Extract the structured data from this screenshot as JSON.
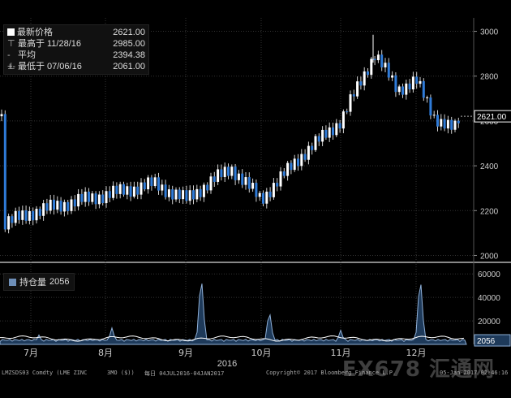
{
  "legend": {
    "rows": [
      {
        "symbol": "sq",
        "label": "最新价格",
        "date": "",
        "value": "2621.00"
      },
      {
        "symbol": "⊤",
        "label": "最高于",
        "date": "11/28/16",
        "value": "2985.00"
      },
      {
        "symbol": "-+-",
        "label": "平均",
        "date": "",
        "value": "2394.38"
      },
      {
        "symbol": "⊥",
        "label": "最低于",
        "date": "07/06/16",
        "value": "2061.00"
      }
    ]
  },
  "volume_legend": {
    "label": "持仓量",
    "value": "2056"
  },
  "footer": {
    "ticker": "LMZSDS03 Comdty (LME ZINC",
    "period": "3MO ($))",
    "range": "每日 04JUL2016-04JAN2017",
    "copyright": "Copyright© 2017 Bloomberg Finance L.P.",
    "timestamp": "05-Jan-2017 02:46:16"
  },
  "watermark": "EX678 汇通网",
  "colors": {
    "up": "#ffffff",
    "down": "#2f7bd8",
    "volume_fill": "#1e3a5a",
    "volume_line": "#8fb0d8",
    "oi_line": "#ffffff",
    "grid": "#333333"
  },
  "chart_data": [
    {
      "type": "candlestick",
      "title": "",
      "x_labels": [
        "7月",
        "8月",
        "9月",
        "10月",
        "11月",
        "12月"
      ],
      "x_sub_label": "2016",
      "ylim": [
        1980,
        3060
      ],
      "yticks": [
        "2000",
        "2200",
        "2400",
        "2600",
        "2800",
        "3000"
      ],
      "last_price": "2621.00",
      "grid": true,
      "y_axis_side": "right",
      "series": [
        {
          "name": "LME ZINC 3MO",
          "monthly_path": [
            {
              "month": "7月",
              "close": 2200
            },
            {
              "month": "8月",
              "close": 2290
            },
            {
              "month": "9月",
              "close": 2300
            },
            {
              "month": "10月",
              "close": 2400
            },
            {
              "month": "11月",
              "close": 2650
            },
            {
              "month": "12月",
              "close": 2621
            }
          ]
        }
      ],
      "high": {
        "value": 2985,
        "date": "11/28/16"
      },
      "low": {
        "value": 2061,
        "date": "07/06/16"
      },
      "average": 2394.38
    },
    {
      "type": "area",
      "title": "",
      "ylim": [
        0,
        65000
      ],
      "yticks": [
        "20000",
        "40000",
        "60000"
      ],
      "last_value": "2056",
      "series": [
        {
          "name": "持仓量",
          "spikes": [
            {
              "month": "7月",
              "value": 8000
            },
            {
              "month": "8月",
              "value": 14000
            },
            {
              "month": "9月",
              "value": 62000
            },
            {
              "month": "10月",
              "value": 30000
            },
            {
              "month": "11月",
              "value": 12000
            },
            {
              "month": "12月",
              "value": 61000
            }
          ]
        }
      ]
    }
  ]
}
